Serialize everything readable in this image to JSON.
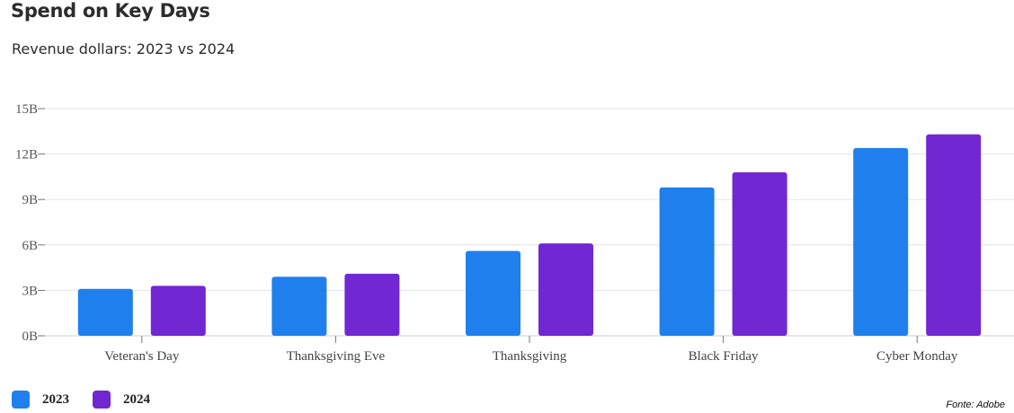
{
  "title": "Spend on Key Days",
  "subtitle": "Revenue dollars: 2023 vs 2024",
  "source": "Fonte: Adobe",
  "chart_data": {
    "type": "bar",
    "title": "Spend on Key Days",
    "subtitle": "Revenue dollars: 2023 vs 2024",
    "categories": [
      "Veteran's Day",
      "Thanksgiving Eve",
      "Thanksgiving",
      "Black Friday",
      "Cyber Monday"
    ],
    "series": [
      {
        "name": "2023",
        "color": "#1f7fed",
        "values": [
          3.1,
          3.9,
          5.6,
          9.8,
          12.4
        ]
      },
      {
        "name": "2024",
        "color": "#7127d2",
        "values": [
          3.3,
          4.1,
          6.1,
          10.8,
          13.3
        ]
      }
    ],
    "ylim": [
      0,
      15
    ],
    "yticks": [
      0,
      3,
      6,
      9,
      12,
      15
    ],
    "ytick_labels": [
      "0B",
      "3B",
      "6B",
      "9B",
      "12B",
      "15B"
    ],
    "grid": true,
    "legend": "bottom-left"
  }
}
